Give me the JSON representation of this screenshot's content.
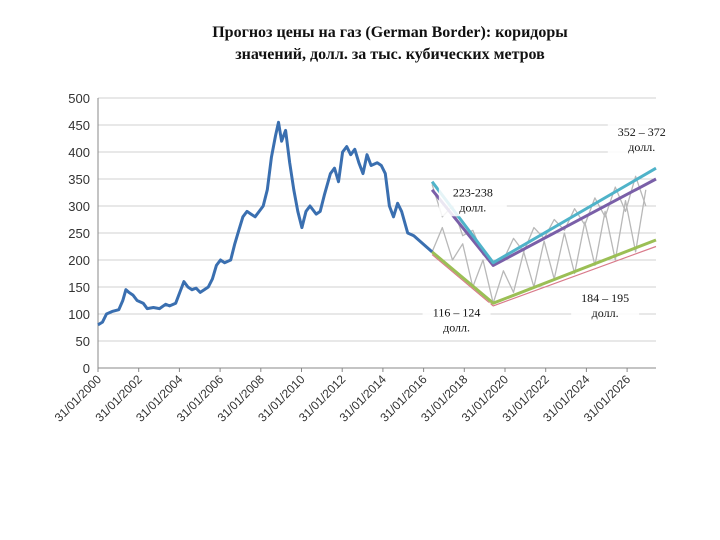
{
  "title_line1": "Прогноз цены на газ (German Border): коридоры",
  "title_line2": "значений, долл. за тыс. кубических метров",
  "chart_data": {
    "type": "line",
    "title": "Прогноз цены на газ (German Border): коридоры значений, долл. за тыс. кубических метров",
    "xlabel": "",
    "ylabel": "",
    "ylim": [
      0,
      500
    ],
    "yticks": [
      "0",
      "50",
      "100",
      "150",
      "200",
      "250",
      "300",
      "350",
      "400",
      "450",
      "500"
    ],
    "xlim": [
      2000.08,
      2027.5
    ],
    "xticks": [
      {
        "label": "31/01/2000",
        "x": 2000.08
      },
      {
        "label": "31/01/2002",
        "x": 2002.08
      },
      {
        "label": "31/01/2004",
        "x": 2004.08
      },
      {
        "label": "31/01/2006",
        "x": 2006.08
      },
      {
        "label": "31/01/2008",
        "x": 2008.08
      },
      {
        "label": "31/01/2010",
        "x": 2010.08
      },
      {
        "label": "31/01/2012",
        "x": 2012.08
      },
      {
        "label": "31/01/2014",
        "x": 2014.08
      },
      {
        "label": "31/01/2016",
        "x": 2016.08
      },
      {
        "label": "31/01/2018",
        "x": 2018.08
      },
      {
        "label": "31/01/2020",
        "x": 2020.08
      },
      {
        "label": "31/01/2022",
        "x": 2022.08
      },
      {
        "label": "31/01/2024",
        "x": 2024.08
      },
      {
        "label": "31/01/2026",
        "x": 2026.08
      }
    ],
    "grid": true,
    "colors": {
      "history": "#3a6fb0",
      "upper": "#4fb3c9",
      "upper_mid": "#7a5fa8",
      "lower": "#9bbf55",
      "lower_thin": "#d97a8a",
      "wave": "#b8b8b8"
    },
    "series": [
      {
        "key": "history",
        "points": [
          [
            2000.08,
            80
          ],
          [
            2000.3,
            85
          ],
          [
            2000.5,
            100
          ],
          [
            2000.8,
            105
          ],
          [
            2001.1,
            108
          ],
          [
            2001.3,
            125
          ],
          [
            2001.45,
            145
          ],
          [
            2001.6,
            140
          ],
          [
            2001.8,
            135
          ],
          [
            2002.0,
            125
          ],
          [
            2002.3,
            120
          ],
          [
            2002.5,
            110
          ],
          [
            2002.8,
            112
          ],
          [
            2003.1,
            110
          ],
          [
            2003.4,
            118
          ],
          [
            2003.6,
            115
          ],
          [
            2003.9,
            120
          ],
          [
            2004.1,
            140
          ],
          [
            2004.3,
            160
          ],
          [
            2004.5,
            150
          ],
          [
            2004.7,
            145
          ],
          [
            2004.9,
            148
          ],
          [
            2005.1,
            140
          ],
          [
            2005.3,
            145
          ],
          [
            2005.5,
            150
          ],
          [
            2005.7,
            165
          ],
          [
            2005.9,
            190
          ],
          [
            2006.1,
            200
          ],
          [
            2006.3,
            195
          ],
          [
            2006.6,
            200
          ],
          [
            2006.8,
            230
          ],
          [
            2007.0,
            255
          ],
          [
            2007.2,
            280
          ],
          [
            2007.4,
            290
          ],
          [
            2007.6,
            285
          ],
          [
            2007.8,
            280
          ],
          [
            2008.0,
            290
          ],
          [
            2008.2,
            300
          ],
          [
            2008.4,
            330
          ],
          [
            2008.6,
            390
          ],
          [
            2008.8,
            430
          ],
          [
            2008.95,
            455
          ],
          [
            2009.1,
            420
          ],
          [
            2009.3,
            440
          ],
          [
            2009.5,
            380
          ],
          [
            2009.7,
            330
          ],
          [
            2009.9,
            290
          ],
          [
            2010.1,
            260
          ],
          [
            2010.3,
            290
          ],
          [
            2010.5,
            300
          ],
          [
            2010.8,
            285
          ],
          [
            2011.0,
            290
          ],
          [
            2011.2,
            320
          ],
          [
            2011.5,
            360
          ],
          [
            2011.7,
            370
          ],
          [
            2011.9,
            345
          ],
          [
            2012.1,
            400
          ],
          [
            2012.3,
            410
          ],
          [
            2012.5,
            395
          ],
          [
            2012.7,
            405
          ],
          [
            2012.9,
            380
          ],
          [
            2013.1,
            360
          ],
          [
            2013.3,
            395
          ],
          [
            2013.5,
            375
          ],
          [
            2013.8,
            380
          ],
          [
            2014.0,
            375
          ],
          [
            2014.2,
            360
          ],
          [
            2014.4,
            300
          ],
          [
            2014.6,
            280
          ],
          [
            2014.8,
            305
          ],
          [
            2015.0,
            290
          ],
          [
            2015.3,
            250
          ],
          [
            2015.6,
            245
          ],
          [
            2015.9,
            235
          ],
          [
            2016.2,
            225
          ],
          [
            2016.5,
            215
          ]
        ]
      },
      {
        "key": "upper",
        "name": "",
        "points": [
          [
            2016.5,
            345
          ],
          [
            2019.5,
            195
          ],
          [
            2027.5,
            370
          ]
        ]
      },
      {
        "key": "upper_mid",
        "name": "",
        "points": [
          [
            2016.5,
            330
          ],
          [
            2019.5,
            190
          ],
          [
            2027.5,
            350
          ]
        ]
      },
      {
        "key": "lower",
        "name": "",
        "points": [
          [
            2016.5,
            215
          ],
          [
            2019.5,
            120
          ],
          [
            2027.5,
            237
          ]
        ]
      },
      {
        "key": "lower_thin",
        "name": "",
        "points": [
          [
            2016.5,
            210
          ],
          [
            2019.5,
            115
          ],
          [
            2027.5,
            225
          ]
        ]
      },
      {
        "key": "wave_upper",
        "points": [
          [
            2016.5,
            340
          ],
          [
            2017.0,
            280
          ],
          [
            2017.5,
            300
          ],
          [
            2018.0,
            245
          ],
          [
            2018.5,
            255
          ],
          [
            2019.0,
            210
          ],
          [
            2019.5,
            195
          ],
          [
            2020.0,
            200
          ],
          [
            2020.5,
            240
          ],
          [
            2021.0,
            215
          ],
          [
            2021.5,
            260
          ],
          [
            2022.0,
            240
          ],
          [
            2022.5,
            275
          ],
          [
            2023.0,
            255
          ],
          [
            2023.5,
            295
          ],
          [
            2024.0,
            265
          ],
          [
            2024.5,
            315
          ],
          [
            2025.0,
            280
          ],
          [
            2025.5,
            335
          ],
          [
            2026.0,
            290
          ],
          [
            2026.5,
            355
          ],
          [
            2027.0,
            300
          ]
        ]
      },
      {
        "key": "wave_lower",
        "points": [
          [
            2016.5,
            215
          ],
          [
            2017.0,
            260
          ],
          [
            2017.5,
            200
          ],
          [
            2018.0,
            230
          ],
          [
            2018.5,
            150
          ],
          [
            2019.0,
            200
          ],
          [
            2019.5,
            120
          ],
          [
            2020.0,
            180
          ],
          [
            2020.5,
            140
          ],
          [
            2021.0,
            215
          ],
          [
            2021.5,
            150
          ],
          [
            2022.0,
            235
          ],
          [
            2022.5,
            165
          ],
          [
            2023.0,
            250
          ],
          [
            2023.5,
            175
          ],
          [
            2024.0,
            270
          ],
          [
            2024.5,
            190
          ],
          [
            2025.0,
            290
          ],
          [
            2025.5,
            200
          ],
          [
            2026.0,
            310
          ],
          [
            2026.5,
            215
          ],
          [
            2027.0,
            330
          ]
        ]
      }
    ],
    "annotations": [
      {
        "line1": "352 – 372",
        "line2": "долл.",
        "x": 2026.8,
        "y": 430
      },
      {
        "line1": "223-238",
        "line2": "долл.",
        "x": 2018.5,
        "y": 318
      },
      {
        "line1": "184 – 195",
        "line2": "долл.",
        "x": 2025.0,
        "y": 122
      },
      {
        "line1": "116 – 124",
        "line2": "долл.",
        "x": 2017.7,
        "y": 95
      }
    ]
  }
}
